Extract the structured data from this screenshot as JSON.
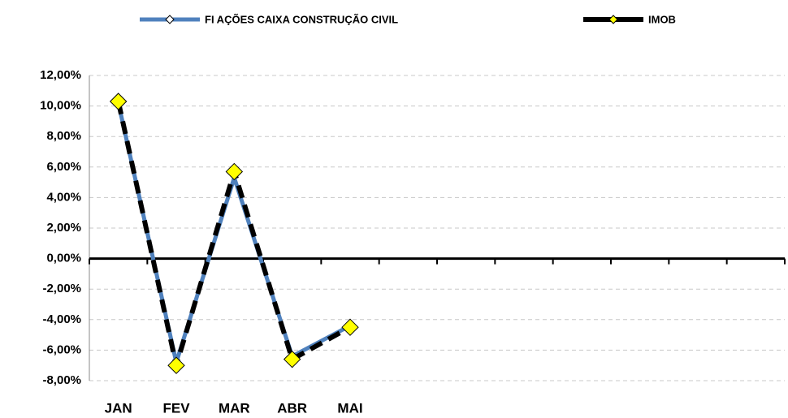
{
  "chart_data": {
    "type": "line",
    "categories": [
      "JAN",
      "FEV",
      "MAR",
      "ABR",
      "MAI",
      null,
      null,
      null,
      null,
      null,
      null,
      null
    ],
    "series": [
      {
        "name": "FI AÇÕES CAIXA CONSTRUÇÃO CIVIL",
        "color": "#4f81bd",
        "values": [
          10.2,
          -6.8,
          5.3,
          -6.4,
          -4.4,
          null,
          null,
          null,
          null,
          null,
          null,
          null
        ]
      },
      {
        "name": "IMOB",
        "color": "#000000",
        "values": [
          10.3,
          -7.0,
          5.7,
          -6.6,
          -4.5,
          null,
          null,
          null,
          null,
          null,
          null,
          null
        ]
      }
    ],
    "ylim": [
      -8,
      12
    ],
    "yticks": [
      {
        "value": -8,
        "label": "-8,00%"
      },
      {
        "value": -6,
        "label": "-6,00%"
      },
      {
        "value": -4,
        "label": "-4,00%"
      },
      {
        "value": -2,
        "label": "-2,00%"
      },
      {
        "value": 0,
        "label": "0,00%"
      },
      {
        "value": 2,
        "label": "2,00%"
      },
      {
        "value": 4,
        "label": "4,00%"
      },
      {
        "value": 6,
        "label": "6,00%"
      },
      {
        "value": 8,
        "label": "8,00%"
      },
      {
        "value": 10,
        "label": "10,00%"
      },
      {
        "value": 12,
        "label": "12,00%"
      }
    ],
    "grid": true,
    "legend": "top"
  }
}
